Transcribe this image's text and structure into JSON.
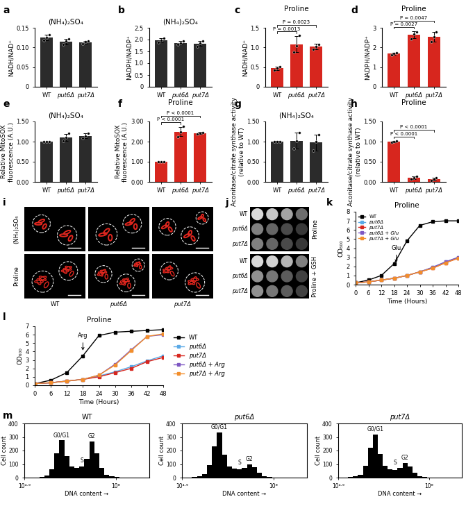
{
  "chart_data": [
    {
      "type": "bar",
      "panel": "a",
      "title": "(NH₄)₂SO₄",
      "ylabel": "NADH/NAD⁺",
      "categories": [
        "WT",
        "put6Δ",
        "put7Δ"
      ],
      "values": [
        0.125,
        0.115,
        0.113
      ],
      "errors": [
        0.007,
        0.007,
        0.003
      ],
      "points": [
        [
          0.118,
          0.126,
          0.132
        ],
        [
          0.108,
          0.117,
          0.121
        ],
        [
          0.11,
          0.114,
          0.116
        ]
      ],
      "color": "#2b2b2b",
      "ylim": [
        0,
        0.15
      ],
      "yticks": [
        0,
        0.05,
        {
          "value": 0.1,
          "label": "0.10"
        },
        0.15
      ]
    },
    {
      "type": "bar",
      "panel": "b",
      "title": "(NH₄)₂SO₄",
      "ylabel": "NADPH/NADP⁺",
      "categories": [
        "WT",
        "put6Δ",
        "put7Δ"
      ],
      "values": [
        1.97,
        1.86,
        1.83
      ],
      "errors": [
        0.09,
        0.08,
        0.1
      ],
      "points": [
        [
          1.88,
          1.97,
          2.06
        ],
        [
          1.78,
          1.86,
          1.93
        ],
        [
          1.72,
          1.84,
          1.93
        ]
      ],
      "color": "#2b2b2b",
      "ylim": [
        0,
        2.5
      ],
      "yticks": [
        0,
        0.5,
        {
          "value": 1,
          "label": "1.0"
        },
        1.5,
        {
          "value": 2,
          "label": "2.0"
        },
        2.5
      ]
    },
    {
      "type": "bar",
      "panel": "c",
      "title": "Proline",
      "ylabel": "NADH/NAD⁺",
      "categories": [
        "WT",
        "put6Δ",
        "put7Δ"
      ],
      "values": [
        0.47,
        1.08,
        1.02
      ],
      "errors": [
        0.04,
        0.2,
        0.07
      ],
      "points": [
        [
          0.43,
          0.47,
          0.51
        ],
        [
          0.88,
          1.05,
          1.3
        ],
        [
          0.95,
          1.03,
          1.08
        ]
      ],
      "color": "#d7261e",
      "ylim": [
        0,
        1.5
      ],
      "yticks": [
        0,
        0.5,
        {
          "value": 1,
          "label": "1.0"
        },
        1.5
      ],
      "annotations": [
        {
          "text": "P = 0.0013",
          "from": "WT",
          "to": "put6Δ"
        },
        {
          "text": "P = 0.0023",
          "from": "WT",
          "to": "put7Δ"
        }
      ]
    },
    {
      "type": "bar",
      "panel": "d",
      "title": "Proline",
      "ylabel": "NADPH/NADP⁺",
      "categories": [
        "WT",
        "put6Δ",
        "put7Δ"
      ],
      "values": [
        1.68,
        2.65,
        2.55
      ],
      "errors": [
        0.06,
        0.18,
        0.25
      ],
      "points": [
        [
          1.62,
          1.68,
          1.74
        ],
        [
          2.45,
          2.7,
          2.8
        ],
        [
          2.3,
          2.55,
          2.8
        ]
      ],
      "color": "#d7261e",
      "ylim": [
        0,
        3
      ],
      "yticks": [
        0,
        1,
        2,
        3
      ],
      "annotations": [
        {
          "text": "P = 0.0027",
          "from": "WT",
          "to": "put6Δ"
        },
        {
          "text": "P = 0.0047",
          "from": "WT",
          "to": "put7Δ"
        }
      ]
    },
    {
      "type": "bar",
      "panel": "e",
      "title": "(NH₄)₂SO₄",
      "ylabel": "Relative MitoSOX\nfluorescence (A.U.)",
      "categories": [
        "WT",
        "put6Δ",
        "put7Δ"
      ],
      "values": [
        1.0,
        1.1,
        1.14
      ],
      "errors": [
        0.005,
        0.09,
        0.06
      ],
      "points": [
        [
          1.0,
          1.0,
          1.0
        ],
        [
          1.02,
          1.1,
          1.2
        ],
        [
          1.08,
          1.14,
          1.2
        ]
      ],
      "color": "#2b2b2b",
      "ylim": [
        0,
        1.5
      ],
      "yticks": [
        {
          "value": 0,
          "label": "0.00"
        },
        {
          "value": 0.5,
          "label": "0.50"
        },
        {
          "value": 1,
          "label": "1.00"
        },
        {
          "value": 1.5,
          "label": "1.50"
        }
      ]
    },
    {
      "type": "bar",
      "panel": "f",
      "title": "Proline",
      "ylabel": "Relative MitoSOX\nfluorescence (A.U.)",
      "categories": [
        "WT",
        "put6Δ",
        "put7Δ"
      ],
      "values": [
        1.0,
        2.5,
        2.42
      ],
      "errors": [
        0.01,
        0.22,
        0.05
      ],
      "points": [
        [
          1.0,
          1.0,
          1.0
        ],
        [
          2.25,
          2.5,
          2.75
        ],
        [
          2.38,
          2.42,
          2.46
        ]
      ],
      "color": "#d7261e",
      "ylim": [
        0,
        3
      ],
      "yticks": [
        {
          "value": 0,
          "label": "0.00"
        },
        {
          "value": 1,
          "label": "1.00"
        },
        {
          "value": 2,
          "label": "2.00"
        },
        {
          "value": 3,
          "label": "3.00"
        }
      ],
      "annotations": [
        {
          "text": "P < 0.0001",
          "from": "WT",
          "to": "put6Δ"
        },
        {
          "text": "P < 0.0001",
          "from": "WT",
          "to": "put7Δ"
        }
      ]
    },
    {
      "type": "bar",
      "panel": "g",
      "title": "(NH₄)₂SO₄",
      "ylabel": "Aconitase/citrate synthase activity\n(relative to WT)",
      "categories": [
        "WT",
        "put6Δ",
        "put7Δ"
      ],
      "values": [
        1.0,
        1.02,
        0.98
      ],
      "errors": [
        0.01,
        0.2,
        0.2
      ],
      "points": [
        [
          1.0,
          1.0,
          1.0
        ],
        [
          0.83,
          1.02,
          1.22
        ],
        [
          0.78,
          1.0,
          1.18
        ]
      ],
      "color": "#2b2b2b",
      "ylim": [
        0,
        1.5
      ],
      "yticks": [
        {
          "value": 0,
          "label": "0.00"
        },
        {
          "value": 0.5,
          "label": "0.50"
        },
        {
          "value": 1,
          "label": "1.00"
        },
        {
          "value": 1.5,
          "label": "1.50"
        }
      ]
    },
    {
      "type": "bar",
      "panel": "h",
      "title": "Proline",
      "ylabel": "Aconitase/citrate synthase activity\n(relative to WT)",
      "categories": [
        "WT",
        "put6Δ",
        "put7Δ"
      ],
      "values": [
        1.0,
        0.1,
        0.07
      ],
      "errors": [
        0.02,
        0.03,
        0.04
      ],
      "points": [
        [
          0.99,
          1.0,
          1.01
        ],
        [
          0.07,
          0.1,
          0.13
        ],
        [
          0.03,
          0.07,
          0.11
        ]
      ],
      "color": "#d7261e",
      "ylim": [
        0,
        1.5
      ],
      "yticks": [
        {
          "value": 0,
          "label": "0.00"
        },
        {
          "value": 0.5,
          "label": "0.50"
        },
        {
          "value": 1,
          "label": "1.00"
        },
        {
          "value": 1.5,
          "label": "1.50"
        }
      ],
      "annotations": [
        {
          "text": "P < 0.0001",
          "from": "WT",
          "to": "put6Δ"
        },
        {
          "text": "P < 0.0001",
          "from": "WT",
          "to": "put7Δ"
        }
      ]
    },
    {
      "type": "line",
      "panel": "k",
      "title": "Proline",
      "xlabel": "Time (Hours)",
      "ylabel": "OD₆₀₀",
      "x": [
        0,
        6,
        12,
        18,
        24,
        30,
        36,
        42,
        48
      ],
      "marker": "square",
      "legend": "upper left",
      "series": [
        {
          "name": "WT",
          "color": "#000000",
          "values": [
            0.2,
            0.5,
            1.0,
            2.3,
            4.8,
            6.5,
            6.9,
            7.0,
            7.0
          ]
        },
        {
          "name": "put6Δ",
          "color": "#5aa9e6",
          "values": [
            0.2,
            0.3,
            0.5,
            0.7,
            1.0,
            1.4,
            1.9,
            2.5,
            3.0
          ]
        },
        {
          "name": "put7Δ",
          "color": "#d7261e",
          "values": [
            0.2,
            0.3,
            0.5,
            0.7,
            1.0,
            1.4,
            1.8,
            2.4,
            2.9
          ]
        },
        {
          "name": "put6Δ + Glu",
          "color": "#7e57c2",
          "values": [
            0.2,
            0.3,
            0.5,
            0.7,
            1.0,
            1.4,
            1.9,
            2.5,
            3.0
          ]
        },
        {
          "name": "put7Δ + Glu",
          "color": "#f28e2b",
          "values": [
            0.2,
            0.3,
            0.5,
            0.7,
            1.0,
            1.4,
            1.8,
            2.4,
            2.9
          ]
        }
      ],
      "xlim": [
        0,
        48
      ],
      "xticks": [
        0,
        6,
        12,
        18,
        24,
        30,
        36,
        42,
        48
      ],
      "ylim": [
        0,
        8
      ],
      "yticks": [
        0,
        1,
        2,
        3,
        4,
        5,
        6,
        7,
        8
      ],
      "annotations": [
        {
          "text": "Glu",
          "x": 19,
          "y": 2.2
        }
      ]
    },
    {
      "type": "line",
      "panel": "l",
      "title": "Proline",
      "xlabel": "Time (Hours)",
      "ylabel": "OD₆₀₀",
      "x": [
        0,
        6,
        12,
        18,
        24,
        30,
        36,
        42,
        48
      ],
      "marker": "square",
      "legend": "right",
      "series": [
        {
          "name": "WT",
          "color": "#000000",
          "values": [
            0.2,
            0.6,
            1.5,
            3.5,
            5.9,
            6.3,
            6.4,
            6.5,
            6.6
          ]
        },
        {
          "name": "put6Δ",
          "color": "#5aa9e6",
          "values": [
            0.2,
            0.3,
            0.5,
            0.7,
            1.1,
            1.6,
            2.2,
            2.9,
            3.5
          ]
        },
        {
          "name": "put7Δ",
          "color": "#d7261e",
          "values": [
            0.2,
            0.3,
            0.5,
            0.7,
            1.0,
            1.5,
            2.0,
            2.8,
            3.3
          ]
        },
        {
          "name": "put6Δ + Arg",
          "color": "#7e57c2",
          "values": [
            0.2,
            0.3,
            0.5,
            0.7,
            1.2,
            2.5,
            4.2,
            5.8,
            6.0
          ]
        },
        {
          "name": "put7Δ + Arg",
          "color": "#f28e2b",
          "values": [
            0.2,
            0.3,
            0.5,
            0.7,
            1.2,
            2.4,
            4.1,
            5.8,
            6.1
          ]
        }
      ],
      "xlim": [
        0,
        48
      ],
      "xticks": [
        0,
        6,
        12,
        18,
        24,
        30,
        36,
        42,
        48
      ],
      "ylim": [
        0,
        7
      ],
      "yticks": [
        0,
        1,
        2,
        3,
        4,
        5,
        6,
        7
      ],
      "annotations": [
        {
          "text": "Arg",
          "x": 18,
          "y": 3.9
        }
      ]
    },
    {
      "type": "histogram",
      "panel": "m",
      "title": "WT",
      "xlabel": "DNA content →",
      "ylabel": "Cell count",
      "log": "x",
      "color": "#000000",
      "bins": [
        79433,
        91201,
        104713,
        120226,
        138038,
        158489,
        181970,
        208930,
        239883,
        275423,
        316228,
        363078,
        416869,
        478630,
        549541,
        630957,
        724436,
        831764,
        954993,
        1096478,
        1258925,
        1445440,
        1659587,
        1905461,
        2187762,
        2511886
      ],
      "counts": [
        0,
        0,
        2,
        5,
        15,
        60,
        180,
        275,
        160,
        80,
        70,
        80,
        140,
        265,
        180,
        70,
        20,
        8,
        4,
        2,
        1,
        1,
        0,
        0,
        0
      ],
      "xlim": [
        79433,
        2511886
      ],
      "xticks": [
        {
          "value": 79433,
          "label": "10⁴·⁹"
        },
        {
          "value": 1000000,
          "label": "10⁶"
        }
      ],
      "ylim": [
        0,
        400
      ],
      "yticks": [
        0,
        100,
        200,
        300,
        400
      ],
      "annotations": [
        {
          "text": "G0/G1",
          "x": 224000,
          "y": 290
        },
        {
          "text": "S",
          "x": 390000,
          "y": 100
        },
        {
          "text": "G2",
          "x": 512000,
          "y": 280
        }
      ]
    },
    {
      "type": "histogram",
      "title": "put6Δ",
      "xlabel": "DNA content →",
      "ylabel": "Cell count",
      "log": "x",
      "color": "#000000",
      "bins": [
        79433,
        91201,
        104713,
        120226,
        138038,
        158489,
        181970,
        208930,
        239883,
        275423,
        316228,
        363078,
        416869,
        478630,
        549541,
        630957,
        724436,
        831764,
        954993,
        1096478,
        1258925,
        1445440,
        1659587,
        1905461,
        2187762,
        2511886
      ],
      "counts": [
        0,
        0,
        3,
        8,
        25,
        90,
        230,
        335,
        170,
        80,
        65,
        60,
        70,
        95,
        75,
        35,
        12,
        5,
        2,
        1,
        1,
        0,
        0,
        0,
        0
      ],
      "xlim": [
        79433,
        2511886
      ],
      "xticks": [
        {
          "value": 79433,
          "label": "10⁴·⁹"
        },
        {
          "value": 1000000,
          "label": "10⁶"
        }
      ],
      "ylim": [
        0,
        400
      ],
      "yticks": [
        0,
        100,
        200,
        300,
        400
      ],
      "annotations": [
        {
          "text": "G0/G1",
          "x": 224000,
          "y": 350
        },
        {
          "text": "S",
          "x": 390000,
          "y": 85
        },
        {
          "text": "G2",
          "x": 512000,
          "y": 115
        }
      ]
    },
    {
      "type": "histogram",
      "title": "put7Δ",
      "xlabel": "DNA content →",
      "ylabel": "Cell count",
      "log": "x",
      "color": "#000000",
      "bins": [
        79433,
        91201,
        104713,
        120226,
        138038,
        158489,
        181970,
        208930,
        239883,
        275423,
        316228,
        363078,
        416869,
        478630,
        549541,
        630957,
        724436,
        831764,
        954993,
        1096478,
        1258925,
        1445440,
        1659587,
        1905461,
        2187762,
        2511886
      ],
      "counts": [
        0,
        0,
        3,
        8,
        22,
        85,
        220,
        320,
        175,
        85,
        60,
        58,
        72,
        110,
        80,
        35,
        12,
        5,
        2,
        1,
        1,
        0,
        0,
        0,
        0
      ],
      "xlim": [
        79433,
        2511886
      ],
      "xticks": [
        {
          "value": 79433,
          "label": "10⁴·⁹"
        },
        {
          "value": 1000000,
          "label": "10⁶"
        }
      ],
      "ylim": [
        0,
        400
      ],
      "yticks": [
        0,
        100,
        200,
        300,
        400
      ],
      "annotations": [
        {
          "text": "G0/G1",
          "x": 224000,
          "y": 335
        },
        {
          "text": "S",
          "x": 390000,
          "y": 85
        },
        {
          "text": "G2",
          "x": 512000,
          "y": 125
        }
      ]
    }
  ],
  "micrographs": {
    "panel": "i",
    "rows": [
      "(NH₄)₂SO₄",
      "Proline"
    ],
    "columns": [
      "WT",
      "put6Δ",
      "put7Δ"
    ]
  },
  "spot_assay": {
    "panel": "j",
    "rows": [
      "WT",
      "put6Δ",
      "put7Δ"
    ],
    "groups": [
      "Proline",
      "Proline + GSH"
    ]
  }
}
